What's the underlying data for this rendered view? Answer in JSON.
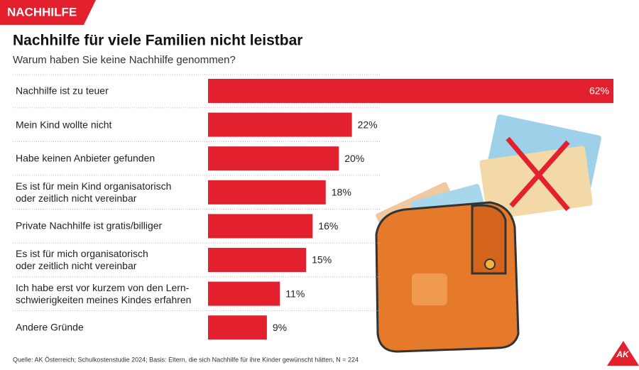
{
  "header": {
    "tag": "NACHHILFE",
    "logo": "AK"
  },
  "chart_data": {
    "type": "bar",
    "orientation": "horizontal",
    "title": "Nachhilfe für viele Familien nicht leistbar",
    "subtitle": "Warum haben Sie keine Nachhilfe genommen?",
    "categories": [
      "Nachhilfe ist zu teuer",
      "Mein Kind wollte nicht",
      "Habe keinen Anbieter gefunden",
      "Es ist für mein Kind organisatorisch\noder zeitlich nicht vereinbar",
      "Private Nachhilfe ist gratis/billiger",
      "Es ist für mich organisatorisch\noder zeitlich nicht vereinbar",
      "Ich habe erst vor kurzem von den Lern-\nschwierigkeiten meines Kindes erfahren",
      "Andere Gründe"
    ],
    "values": [
      62,
      22,
      20,
      18,
      16,
      15,
      11,
      9
    ],
    "value_labels": [
      "62%",
      "22%",
      "20%",
      "18%",
      "16%",
      "15%",
      "11%",
      "9%"
    ],
    "color": "#e3202e",
    "source": "Quelle: AK Österreich; Schulkostenstudie 2024; Basis: Eltern, die sich Nachhilfe für ihre Kinder gewünscht hätten, N = 224"
  }
}
